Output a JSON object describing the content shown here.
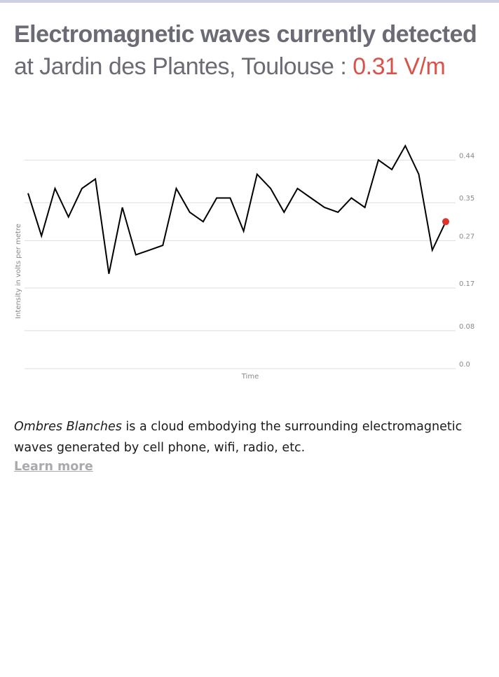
{
  "header": {
    "title_strong": "Electromagnetic waves currently detected",
    "title_prefix": "at Jardin des Plantes, Toulouse :",
    "current_reading": "0.31 V/m"
  },
  "description": {
    "emphasis": "Ombres Blanches",
    "text": " is a cloud embodying the surrounding electromagnetic waves generated by cell phone, wifi, radio, etc."
  },
  "learn_more_label": "Learn more",
  "colors": {
    "heading": "#6b6b76",
    "reading_accent": "#d9534a",
    "line": "#000000",
    "gridline": "#dddddd",
    "marker": "#e0332d",
    "link": "#a9a9ae"
  },
  "chart_data": {
    "type": "line",
    "xlabel": "Time",
    "ylabel": "Intensity in volts per metre",
    "ylim": [
      0,
      0.5
    ],
    "y_ticks": [
      {
        "value": 0.44,
        "label": "0.44"
      },
      {
        "value": 0.35,
        "label": "0.35"
      },
      {
        "value": 0.27,
        "label": "0.27"
      },
      {
        "value": 0.17,
        "label": "0.17"
      },
      {
        "value": 0.08,
        "label": "0.08"
      },
      {
        "value": 0.0,
        "label": "0.0"
      }
    ],
    "y_axis_position": "right",
    "grid": true,
    "values": [
      0.37,
      0.28,
      0.38,
      0.32,
      0.38,
      0.4,
      0.2,
      0.34,
      0.24,
      0.25,
      0.26,
      0.38,
      0.33,
      0.31,
      0.36,
      0.36,
      0.29,
      0.41,
      0.38,
      0.33,
      0.38,
      0.36,
      0.34,
      0.33,
      0.36,
      0.34,
      0.44,
      0.42,
      0.47,
      0.41,
      0.25,
      0.31
    ],
    "latest_value": 0.31,
    "latest_marker": true
  }
}
